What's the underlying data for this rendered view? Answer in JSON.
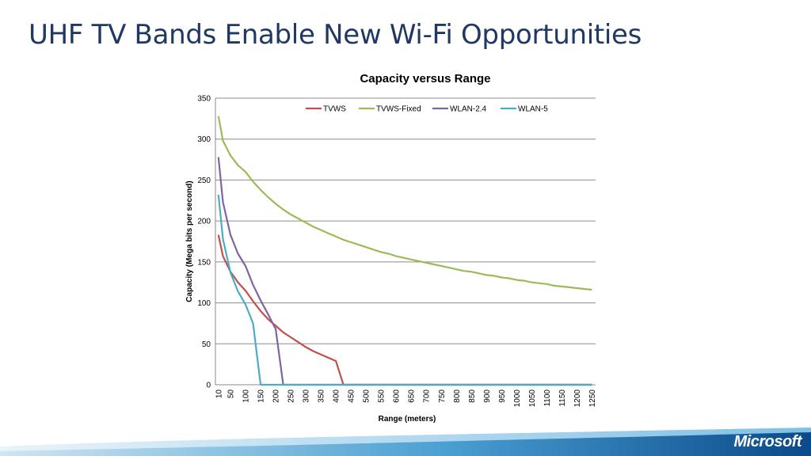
{
  "slide": {
    "title": "UHF TV Bands Enable New Wi-Fi Opportunities"
  },
  "footer": {
    "logo_text": "Microsoft"
  },
  "chart_data": {
    "type": "line",
    "title": "Capacity versus Range",
    "xlabel": "Range (meters)",
    "ylabel": "Capacity (Mega bits per second)",
    "ylim": [
      0,
      350
    ],
    "yticks": [
      0,
      50,
      100,
      150,
      200,
      250,
      300,
      350
    ],
    "grid": true,
    "legend_position": "top",
    "categories": [
      "10",
      "50",
      "100",
      "150",
      "200",
      "250",
      "300",
      "350",
      "400",
      "450",
      "500",
      "550",
      "600",
      "650",
      "700",
      "750",
      "800",
      "850",
      "900",
      "950",
      "1000",
      "1050",
      "1100",
      "1150",
      "1200",
      "1250"
    ],
    "x": [
      10,
      25,
      50,
      75,
      100,
      125,
      150,
      175,
      200,
      225,
      250,
      275,
      300,
      325,
      350,
      375,
      400,
      425,
      450,
      475,
      500,
      525,
      550,
      575,
      600,
      625,
      650,
      675,
      700,
      725,
      750,
      775,
      800,
      825,
      850,
      875,
      900,
      925,
      950,
      975,
      1000,
      1025,
      1050,
      1075,
      1100,
      1125,
      1150,
      1175,
      1200,
      1225,
      1250
    ],
    "series": [
      {
        "name": "TVWS",
        "color": "#c0504d",
        "values": [
          183,
          157,
          138,
          125,
          115,
          102,
          90,
          80,
          72,
          64,
          58,
          52,
          46,
          41,
          37,
          33,
          29,
          0,
          0,
          0,
          0,
          0,
          0,
          0,
          0,
          0,
          0,
          0,
          0,
          0,
          0,
          0,
          0,
          0,
          0,
          0,
          0,
          0,
          0,
          0,
          0,
          0,
          0,
          0,
          0,
          0,
          0,
          0,
          0,
          0,
          0
        ]
      },
      {
        "name": "TVWS-Fixed",
        "color": "#9bbb59",
        "values": [
          328,
          298,
          280,
          268,
          260,
          248,
          238,
          229,
          221,
          214,
          208,
          203,
          198,
          193,
          189,
          185,
          181,
          177,
          174,
          171,
          168,
          165,
          162,
          160,
          157,
          155,
          153,
          151,
          149,
          147,
          145,
          143,
          141,
          139,
          138,
          136,
          134,
          133,
          131,
          130,
          128,
          127,
          125,
          124,
          123,
          121,
          120,
          119,
          118,
          117,
          116
        ]
      },
      {
        "name": "WLAN-2.4",
        "color": "#8064a2",
        "values": [
          278,
          223,
          183,
          160,
          145,
          122,
          103,
          86,
          68,
          0,
          0,
          0,
          0,
          0,
          0,
          0,
          0,
          0,
          0,
          0,
          0,
          0,
          0,
          0,
          0,
          0,
          0,
          0,
          0,
          0,
          0,
          0,
          0,
          0,
          0,
          0,
          0,
          0,
          0,
          0,
          0,
          0,
          0,
          0,
          0,
          0,
          0,
          0,
          0,
          0,
          0
        ]
      },
      {
        "name": "WLAN-5",
        "color": "#4bacc6",
        "values": [
          232,
          178,
          137,
          114,
          98,
          75,
          0,
          0,
          0,
          0,
          0,
          0,
          0,
          0,
          0,
          0,
          0,
          0,
          0,
          0,
          0,
          0,
          0,
          0,
          0,
          0,
          0,
          0,
          0,
          0,
          0,
          0,
          0,
          0,
          0,
          0,
          0,
          0,
          0,
          0,
          0,
          0,
          0,
          0,
          0,
          0,
          0,
          0,
          0,
          0,
          0
        ]
      }
    ]
  }
}
